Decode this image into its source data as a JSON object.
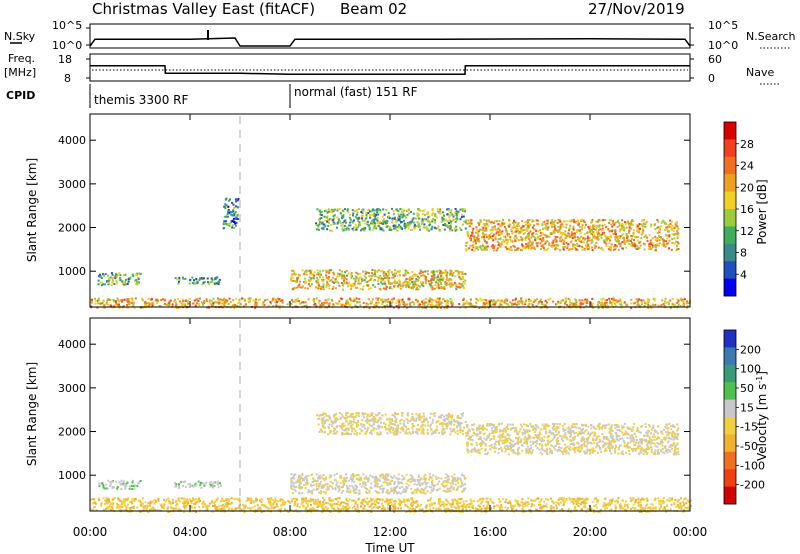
{
  "header": {
    "title": "Christmas Valley East (fitACF)",
    "beam": "Beam 02",
    "date": "27/Nov/2019"
  },
  "params": {
    "nsky_label": "N.Sky",
    "nsearch_label": "N.Search",
    "nsearch_ticks": [
      "10^5",
      "10^0"
    ],
    "freq_label": "Freq.",
    "freq_unit": "[MHz]",
    "freq_ticks": [
      "18",
      "8"
    ],
    "nave_label": "Nave",
    "nave_ticks": [
      "60",
      "0"
    ],
    "cpid_label": "CPID",
    "cpid_segments": [
      {
        "start_hour": 0,
        "end_hour": 6,
        "label": "themis 3300 RF"
      },
      {
        "start_hour": 8,
        "end_hour": 24,
        "label": "normal (fast) 151 RF"
      }
    ]
  },
  "x_axis": {
    "label": "Time UT",
    "ticks": [
      "00:00",
      "04:00",
      "08:00",
      "12:00",
      "16:00",
      "20:00",
      "00:00"
    ],
    "range_hours": [
      0,
      24
    ]
  },
  "y_axis": {
    "label": "Slant Range [km]",
    "ticks": [
      "1000",
      "2000",
      "3000",
      "4000"
    ],
    "range": [
      180,
      4600
    ]
  },
  "colorbars": {
    "power": {
      "label": "Power [dB]",
      "ticks": [
        "4",
        "8",
        "12",
        "16",
        "20",
        "24",
        "28"
      ],
      "colors": [
        "#0000f0",
        "#2050c0",
        "#3a8a8a",
        "#3fae5c",
        "#9ccc3c",
        "#f0d020",
        "#f0a020",
        "#f07020",
        "#f04020",
        "#d80000"
      ]
    },
    "velocity": {
      "label": "Velocity [m s",
      "label_sup": "-1",
      "label_end": "]",
      "ticks": [
        "200",
        "100",
        "50",
        "15",
        "-15",
        "-50",
        "-100",
        "-200"
      ],
      "colors": [
        "#2030c0",
        "#3a7ab0",
        "#3a9a7a",
        "#50c050",
        "#c8c8c8",
        "#f0d040",
        "#f0b030",
        "#f07020",
        "#f04010",
        "#d00000"
      ]
    }
  },
  "chart_data": [
    {
      "type": "line",
      "title": "Christmas Valley East (fitACF)",
      "series": [
        {
          "name": "N.Sky",
          "x": [
            0,
            0.2,
            4,
            5.8,
            6,
            8,
            8.2,
            14,
            20,
            23.8,
            24
          ],
          "y": [
            0,
            0.85,
            0.85,
            1.0,
            0,
            0,
            0.85,
            0.85,
            0.9,
            0.85,
            0
          ]
        },
        {
          "name": "Freq.",
          "x": [
            0,
            3,
            3.01,
            6,
            8,
            15,
            15.01,
            24
          ],
          "y": [
            14.5,
            14.5,
            10.5,
            10.5,
            10,
            10,
            14.5,
            14.5
          ]
        }
      ],
      "xlabel": "Time UT",
      "xlim": [
        0,
        24
      ]
    },
    {
      "type": "heatmap",
      "ylabel": "Slant Range [km]",
      "xlabel": "Time UT",
      "zlabel": "Power [dB]",
      "xlim": [
        0,
        24
      ],
      "ylim": [
        180,
        4600
      ],
      "regions": [
        {
          "t": [
            0.3,
            2.0
          ],
          "range": [
            700,
            980
          ],
          "value": 12
        },
        {
          "t": [
            3.3,
            5.2
          ],
          "range": [
            720,
            880
          ],
          "value": 10
        },
        {
          "t": [
            5.3,
            5.9
          ],
          "range": [
            2000,
            2700
          ],
          "value": 8
        },
        {
          "t": [
            8.0,
            15.0
          ],
          "range": [
            600,
            1050
          ],
          "value": 18
        },
        {
          "t": [
            9.0,
            15.0
          ],
          "range": [
            1950,
            2450
          ],
          "value": 12
        },
        {
          "t": [
            15.0,
            23.5
          ],
          "range": [
            1500,
            2200
          ],
          "value": 20
        },
        {
          "t": [
            0.0,
            24.0
          ],
          "range": [
            180,
            400
          ],
          "value": 20
        }
      ]
    },
    {
      "type": "heatmap",
      "ylabel": "Slant Range [km]",
      "xlabel": "Time UT",
      "zlabel": "Velocity [m s-1]",
      "xlim": [
        0,
        24
      ],
      "ylim": [
        180,
        4600
      ],
      "regions": [
        {
          "t": [
            0.3,
            2.0
          ],
          "range": [
            700,
            900
          ],
          "value": 40
        },
        {
          "t": [
            3.3,
            5.2
          ],
          "range": [
            720,
            880
          ],
          "value": 40
        },
        {
          "t": [
            8.0,
            15.0
          ],
          "range": [
            600,
            1050
          ],
          "value": 10
        },
        {
          "t": [
            9.0,
            15.0
          ],
          "range": [
            1950,
            2450
          ],
          "value": 0
        },
        {
          "t": [
            15.0,
            23.5
          ],
          "range": [
            1500,
            2200
          ],
          "value": 0
        },
        {
          "t": [
            0.0,
            24.0
          ],
          "range": [
            180,
            500
          ],
          "value": -40
        }
      ]
    }
  ]
}
